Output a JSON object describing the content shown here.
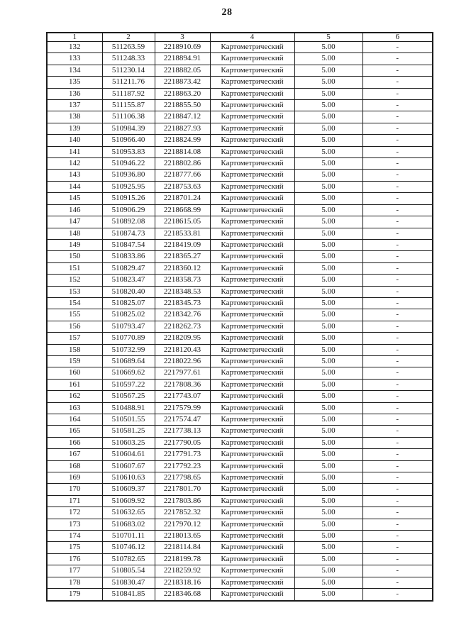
{
  "page": {
    "number": "28"
  },
  "table": {
    "headers": [
      "1",
      "2",
      "3",
      "4",
      "5",
      "6"
    ],
    "rows": [
      [
        "132",
        "511263.59",
        "2218910.69",
        "Картометрический",
        "5.00",
        "-"
      ],
      [
        "133",
        "511248.33",
        "2218894.91",
        "Картометрический",
        "5.00",
        "-"
      ],
      [
        "134",
        "511230.14",
        "2218882.05",
        "Картометрический",
        "5.00",
        "-"
      ],
      [
        "135",
        "511211.76",
        "2218873.42",
        "Картометрический",
        "5.00",
        "-"
      ],
      [
        "136",
        "511187.92",
        "2218863.20",
        "Картометрический",
        "5.00",
        "-"
      ],
      [
        "137",
        "511155.87",
        "2218855.50",
        "Картометрический",
        "5.00",
        "-"
      ],
      [
        "138",
        "511106.38",
        "2218847.12",
        "Картометрический",
        "5.00",
        "-"
      ],
      [
        "139",
        "510984.39",
        "2218827.93",
        "Картометрический",
        "5.00",
        "-"
      ],
      [
        "140",
        "510966.40",
        "2218824.99",
        "Картометрический",
        "5.00",
        "-"
      ],
      [
        "141",
        "510953.83",
        "2218814.08",
        "Картометрический",
        "5.00",
        "-"
      ],
      [
        "142",
        "510946.22",
        "2218802.86",
        "Картометрический",
        "5.00",
        "-"
      ],
      [
        "143",
        "510936.80",
        "2218777.66",
        "Картометрический",
        "5.00",
        "-"
      ],
      [
        "144",
        "510925.95",
        "2218753.63",
        "Картометрический",
        "5.00",
        "-"
      ],
      [
        "145",
        "510915.26",
        "2218701.24",
        "Картометрический",
        "5.00",
        "-"
      ],
      [
        "146",
        "510906.29",
        "2218668.99",
        "Картометрический",
        "5.00",
        "-"
      ],
      [
        "147",
        "510892.08",
        "2218615.05",
        "Картометрический",
        "5.00",
        "-"
      ],
      [
        "148",
        "510874.73",
        "2218533.81",
        "Картометрический",
        "5.00",
        "-"
      ],
      [
        "149",
        "510847.54",
        "2218419.09",
        "Картометрический",
        "5.00",
        "-"
      ],
      [
        "150",
        "510833.86",
        "2218365.27",
        "Картометрический",
        "5.00",
        "-"
      ],
      [
        "151",
        "510829.47",
        "2218360.12",
        "Картометрический",
        "5.00",
        "-"
      ],
      [
        "152",
        "510823.47",
        "2218358.73",
        "Картометрический",
        "5.00",
        "-"
      ],
      [
        "153",
        "510820.40",
        "2218348.53",
        "Картометрический",
        "5.00",
        "-"
      ],
      [
        "154",
        "510825.07",
        "2218345.73",
        "Картометрический",
        "5.00",
        "-"
      ],
      [
        "155",
        "510825.02",
        "2218342.76",
        "Картометрический",
        "5.00",
        "-"
      ],
      [
        "156",
        "510793.47",
        "2218262.73",
        "Картометрический",
        "5.00",
        "-"
      ],
      [
        "157",
        "510770.89",
        "2218209.95",
        "Картометрический",
        "5.00",
        "-"
      ],
      [
        "158",
        "510732.99",
        "2218120.43",
        "Картометрический",
        "5.00",
        "-"
      ],
      [
        "159",
        "510689.64",
        "2218022.96",
        "Картометрический",
        "5.00",
        "-"
      ],
      [
        "160",
        "510669.62",
        "2217977.61",
        "Картометрический",
        "5.00",
        "-"
      ],
      [
        "161",
        "510597.22",
        "2217808.36",
        "Картометрический",
        "5.00",
        "-"
      ],
      [
        "162",
        "510567.25",
        "2217743.07",
        "Картометрический",
        "5.00",
        "-"
      ],
      [
        "163",
        "510488.91",
        "2217579.99",
        "Картометрический",
        "5.00",
        "-"
      ],
      [
        "164",
        "510501.55",
        "2217574.47",
        "Картометрический",
        "5.00",
        "-"
      ],
      [
        "165",
        "510581.25",
        "2217738.13",
        "Картометрический",
        "5.00",
        "-"
      ],
      [
        "166",
        "510603.25",
        "2217790.05",
        "Картометрический",
        "5.00",
        "-"
      ],
      [
        "167",
        "510604.61",
        "2217791.73",
        "Картометрический",
        "5.00",
        "-"
      ],
      [
        "168",
        "510607.67",
        "2217792.23",
        "Картометрический",
        "5.00",
        "-"
      ],
      [
        "169",
        "510610.63",
        "2217798.65",
        "Картометрический",
        "5.00",
        "-"
      ],
      [
        "170",
        "510609.37",
        "2217801.70",
        "Картометрический",
        "5.00",
        "-"
      ],
      [
        "171",
        "510609.92",
        "2217803.86",
        "Картометрический",
        "5.00",
        "-"
      ],
      [
        "172",
        "510632.65",
        "2217852.32",
        "Картометрический",
        "5.00",
        "-"
      ],
      [
        "173",
        "510683.02",
        "2217970.12",
        "Картометрический",
        "5.00",
        "-"
      ],
      [
        "174",
        "510701.11",
        "2218013.65",
        "Картометрический",
        "5.00",
        "-"
      ],
      [
        "175",
        "510746.12",
        "2218114.84",
        "Картометрический",
        "5.00",
        "-"
      ],
      [
        "176",
        "510782.65",
        "2218199.78",
        "Картометрический",
        "5.00",
        "-"
      ],
      [
        "177",
        "510805.54",
        "2218259.92",
        "Картометрический",
        "5.00",
        "-"
      ],
      [
        "178",
        "510830.47",
        "2218318.16",
        "Картометрический",
        "5.00",
        "-"
      ],
      [
        "179",
        "510841.85",
        "2218346.68",
        "Картометрический",
        "5.00",
        "-"
      ]
    ]
  }
}
